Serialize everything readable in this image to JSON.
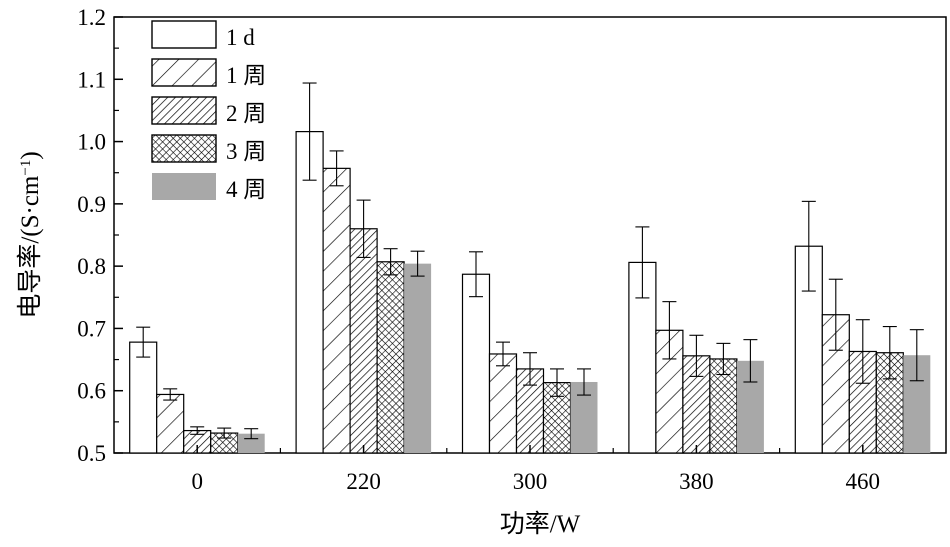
{
  "chart_data": {
    "type": "bar",
    "title": "",
    "xlabel": "功率/W",
    "ylabel_main": "电导率/(S·cm",
    "ylabel_sup": "−1",
    "ylabel_close": ")",
    "ylim": [
      0.5,
      1.2
    ],
    "yticks": [
      "0.5",
      "0.6",
      "0.7",
      "0.8",
      "0.9",
      "1.0",
      "1.1",
      "1.2"
    ],
    "categories": [
      "0",
      "220",
      "300",
      "380",
      "460"
    ],
    "legend_position": "top-left",
    "grid": false,
    "series": [
      {
        "name": "1 d",
        "pattern": "none",
        "values": [
          0.678,
          1.016,
          0.787,
          0.806,
          0.832
        ],
        "errors": [
          0.024,
          0.078,
          0.036,
          0.057,
          0.072
        ]
      },
      {
        "name": "1 周",
        "pattern": "diagonal",
        "values": [
          0.594,
          0.957,
          0.659,
          0.697,
          0.722
        ],
        "errors": [
          0.009,
          0.028,
          0.019,
          0.046,
          0.057
        ]
      },
      {
        "name": "2 周",
        "pattern": "dense-diagonal",
        "values": [
          0.536,
          0.86,
          0.635,
          0.656,
          0.663
        ],
        "errors": [
          0.006,
          0.046,
          0.026,
          0.033,
          0.051
        ]
      },
      {
        "name": "3 周",
        "pattern": "crosshatch",
        "values": [
          0.532,
          0.807,
          0.613,
          0.651,
          0.661
        ],
        "errors": [
          0.008,
          0.021,
          0.022,
          0.025,
          0.042
        ]
      },
      {
        "name": "4 周",
        "pattern": "gray",
        "values": [
          0.531,
          0.804,
          0.614,
          0.648,
          0.657
        ],
        "errors": [
          0.008,
          0.02,
          0.021,
          0.034,
          0.041
        ]
      }
    ]
  }
}
